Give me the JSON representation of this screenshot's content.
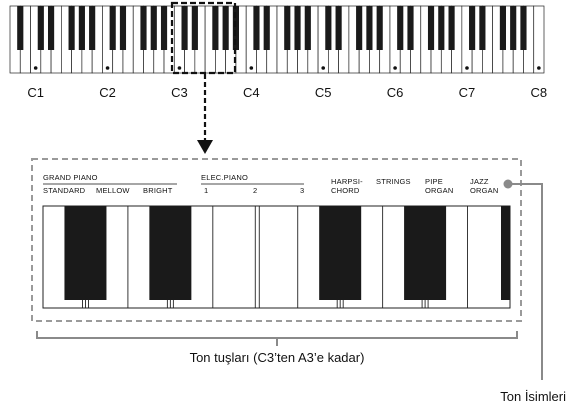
{
  "keyboard": {
    "octave_labels": [
      "C1",
      "C2",
      "C3",
      "C4",
      "C5",
      "C6",
      "C7",
      "C8"
    ]
  },
  "tones": {
    "grand_piano_group": "GRAND PIANO",
    "grand_piano_items": [
      "STANDARD",
      "MELLOW",
      "BRIGHT"
    ],
    "elec_piano_group": "ELEC.PIANO",
    "elec_piano_items": [
      "1",
      "2",
      "3"
    ],
    "harpsichord_line1": "HARPSI-",
    "harpsichord_line2": "CHORD",
    "strings": "STRINGS",
    "pipe_organ_line1": "PIPE",
    "pipe_organ_line2": "ORGAN",
    "jazz_organ_line1": "JAZZ",
    "jazz_organ_line2": "ORGAN"
  },
  "captions": {
    "tone_keys": "Ton tuşları (C3’ten A3’e kadar)",
    "tone_names": "Ton İsimleri"
  },
  "colors": {
    "key_black": "#1a1a1a",
    "dashed_border": "#9a9a9a",
    "callout_line": "#8a8a8a",
    "highlight_border": "#111111"
  }
}
